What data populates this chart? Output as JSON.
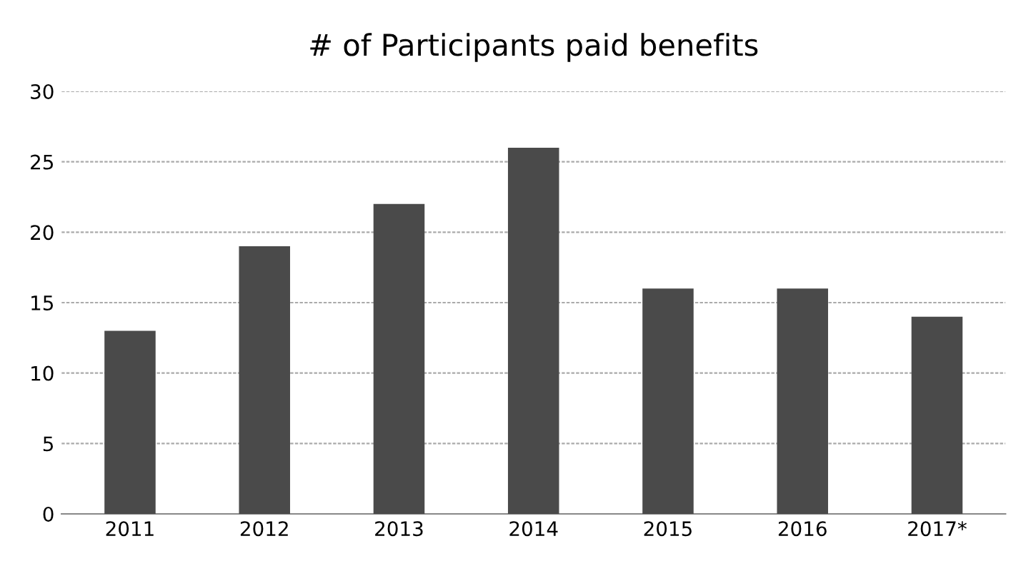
{
  "chart_data": {
    "type": "bar",
    "title": "# of Participants paid benefits",
    "categories": [
      "2011",
      "2012",
      "2013",
      "2014",
      "2015",
      "2016",
      "2017*"
    ],
    "values": [
      13,
      19,
      22,
      26,
      16,
      16,
      14
    ],
    "color": "#4a4a4a",
    "ylim": [
      0,
      30
    ],
    "yticks": [
      0,
      5,
      10,
      15,
      20,
      25,
      30
    ],
    "grid": "y"
  }
}
